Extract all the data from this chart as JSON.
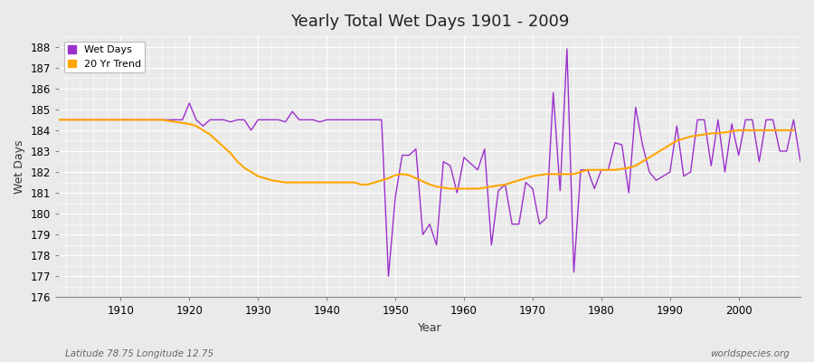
{
  "title": "Yearly Total Wet Days 1901 - 2009",
  "xlabel": "Year",
  "ylabel": "Wet Days",
  "subtitle_left": "Latitude 78.75 Longitude 12.75",
  "subtitle_right": "worldspecies.org",
  "wet_days_color": "#9B30CC",
  "trend_color": "#FFA500",
  "background_color": "#EAEAEA",
  "grid_color": "#FFFFFF",
  "ylim": [
    176,
    188.5
  ],
  "xlim_left": 1901,
  "xlim_right": 2009,
  "years": [
    1901,
    1902,
    1903,
    1904,
    1905,
    1906,
    1907,
    1908,
    1909,
    1910,
    1911,
    1912,
    1913,
    1914,
    1915,
    1916,
    1917,
    1918,
    1919,
    1920,
    1921,
    1922,
    1923,
    1924,
    1925,
    1926,
    1927,
    1928,
    1929,
    1930,
    1931,
    1932,
    1933,
    1934,
    1935,
    1936,
    1937,
    1938,
    1939,
    1940,
    1941,
    1942,
    1943,
    1944,
    1945,
    1946,
    1947,
    1948,
    1949,
    1950,
    1951,
    1952,
    1953,
    1954,
    1955,
    1956,
    1957,
    1958,
    1959,
    1960,
    1961,
    1962,
    1963,
    1964,
    1965,
    1966,
    1967,
    1968,
    1969,
    1970,
    1971,
    1972,
    1973,
    1974,
    1975,
    1976,
    1977,
    1978,
    1979,
    1980,
    1981,
    1982,
    1983,
    1984,
    1985,
    1986,
    1987,
    1988,
    1989,
    1990,
    1991,
    1992,
    1993,
    1994,
    1995,
    1996,
    1997,
    1998,
    1999,
    2000,
    2001,
    2002,
    2003,
    2004,
    2005,
    2006,
    2007,
    2008,
    2009
  ],
  "wet_days": [
    184.5,
    184.5,
    184.5,
    184.5,
    184.5,
    184.5,
    184.5,
    184.5,
    184.5,
    184.5,
    184.5,
    184.5,
    184.5,
    184.5,
    184.5,
    184.5,
    184.5,
    184.5,
    184.5,
    185.3,
    184.5,
    184.2,
    184.5,
    184.5,
    184.5,
    184.4,
    184.5,
    184.5,
    184.0,
    184.5,
    184.5,
    184.5,
    184.5,
    184.4,
    184.9,
    184.5,
    184.5,
    184.5,
    184.4,
    184.5,
    184.5,
    184.5,
    184.5,
    184.5,
    184.5,
    184.5,
    184.5,
    184.5,
    177.0,
    180.8,
    182.8,
    182.8,
    183.1,
    179.0,
    179.5,
    178.5,
    182.5,
    182.3,
    181.0,
    182.7,
    182.4,
    182.1,
    183.1,
    178.5,
    181.1,
    181.4,
    179.5,
    179.5,
    181.5,
    181.2,
    179.5,
    179.8,
    185.8,
    181.1,
    187.9,
    177.2,
    182.1,
    182.1,
    181.2,
    182.1,
    182.1,
    183.4,
    183.3,
    181.0,
    185.1,
    183.3,
    182.0,
    181.6,
    181.8,
    182.0,
    184.2,
    181.8,
    182.0,
    184.5,
    184.5,
    182.3,
    184.5,
    182.0,
    184.3,
    182.8,
    184.5,
    184.5,
    182.5,
    184.5,
    184.5,
    183.0,
    183.0,
    184.5,
    182.5
  ],
  "trend_years": [
    1901,
    1902,
    1903,
    1904,
    1905,
    1906,
    1907,
    1908,
    1909,
    1910,
    1911,
    1912,
    1913,
    1914,
    1915,
    1916,
    1917,
    1918,
    1919,
    1920,
    1921,
    1922,
    1923,
    1924,
    1925,
    1926,
    1927,
    1928,
    1929,
    1930,
    1931,
    1932,
    1933,
    1934,
    1935,
    1936,
    1937,
    1938,
    1939,
    1940,
    1941,
    1942,
    1943,
    1944,
    1945,
    1946,
    1947,
    1948,
    1949,
    1950,
    1951,
    1952,
    1953,
    1954,
    1955,
    1956,
    1957,
    1958,
    1959,
    1960,
    1961,
    1962,
    1963,
    1964,
    1965,
    1966,
    1967,
    1968,
    1969,
    1970,
    1971,
    1972,
    1973,
    1974,
    1975,
    1976,
    1977,
    1978,
    1979,
    1980,
    1981,
    1982,
    1983,
    1984,
    1985,
    1986,
    1987,
    1988,
    1989,
    1990,
    1991,
    1992,
    1993,
    1994,
    1995,
    1996,
    1997,
    1998,
    1999,
    2000,
    2001,
    2002,
    2003,
    2004,
    2005,
    2006,
    2007,
    2008,
    2009
  ],
  "trend": [
    184.5,
    184.5,
    184.5,
    184.5,
    184.5,
    184.5,
    184.5,
    184.5,
    184.5,
    184.5,
    184.5,
    184.5,
    184.5,
    184.5,
    184.5,
    184.5,
    184.45,
    184.4,
    184.35,
    184.3,
    184.2,
    184.0,
    183.8,
    183.5,
    183.2,
    182.9,
    182.5,
    182.2,
    182.0,
    181.8,
    181.7,
    181.6,
    181.55,
    181.5,
    181.5,
    181.5,
    181.5,
    181.5,
    181.5,
    181.5,
    181.5,
    181.5,
    181.5,
    181.5,
    181.4,
    181.4,
    181.5,
    181.6,
    181.7,
    181.85,
    181.9,
    181.85,
    181.7,
    181.55,
    181.4,
    181.3,
    181.25,
    181.2,
    181.2,
    181.2,
    181.2,
    181.2,
    181.25,
    181.3,
    181.35,
    181.4,
    181.5,
    181.6,
    181.7,
    181.8,
    181.85,
    181.9,
    181.9,
    181.9,
    181.9,
    181.9,
    182.0,
    182.1,
    182.1,
    182.1,
    182.1,
    182.1,
    182.15,
    182.2,
    182.3,
    182.5,
    182.7,
    182.9,
    183.1,
    183.3,
    183.5,
    183.6,
    183.7,
    183.75,
    183.8,
    183.85,
    183.85,
    183.9,
    183.95,
    184.0,
    184.0,
    184.0,
    184.0,
    184.0,
    184.0,
    184.0,
    184.0,
    184.0,
    null
  ]
}
